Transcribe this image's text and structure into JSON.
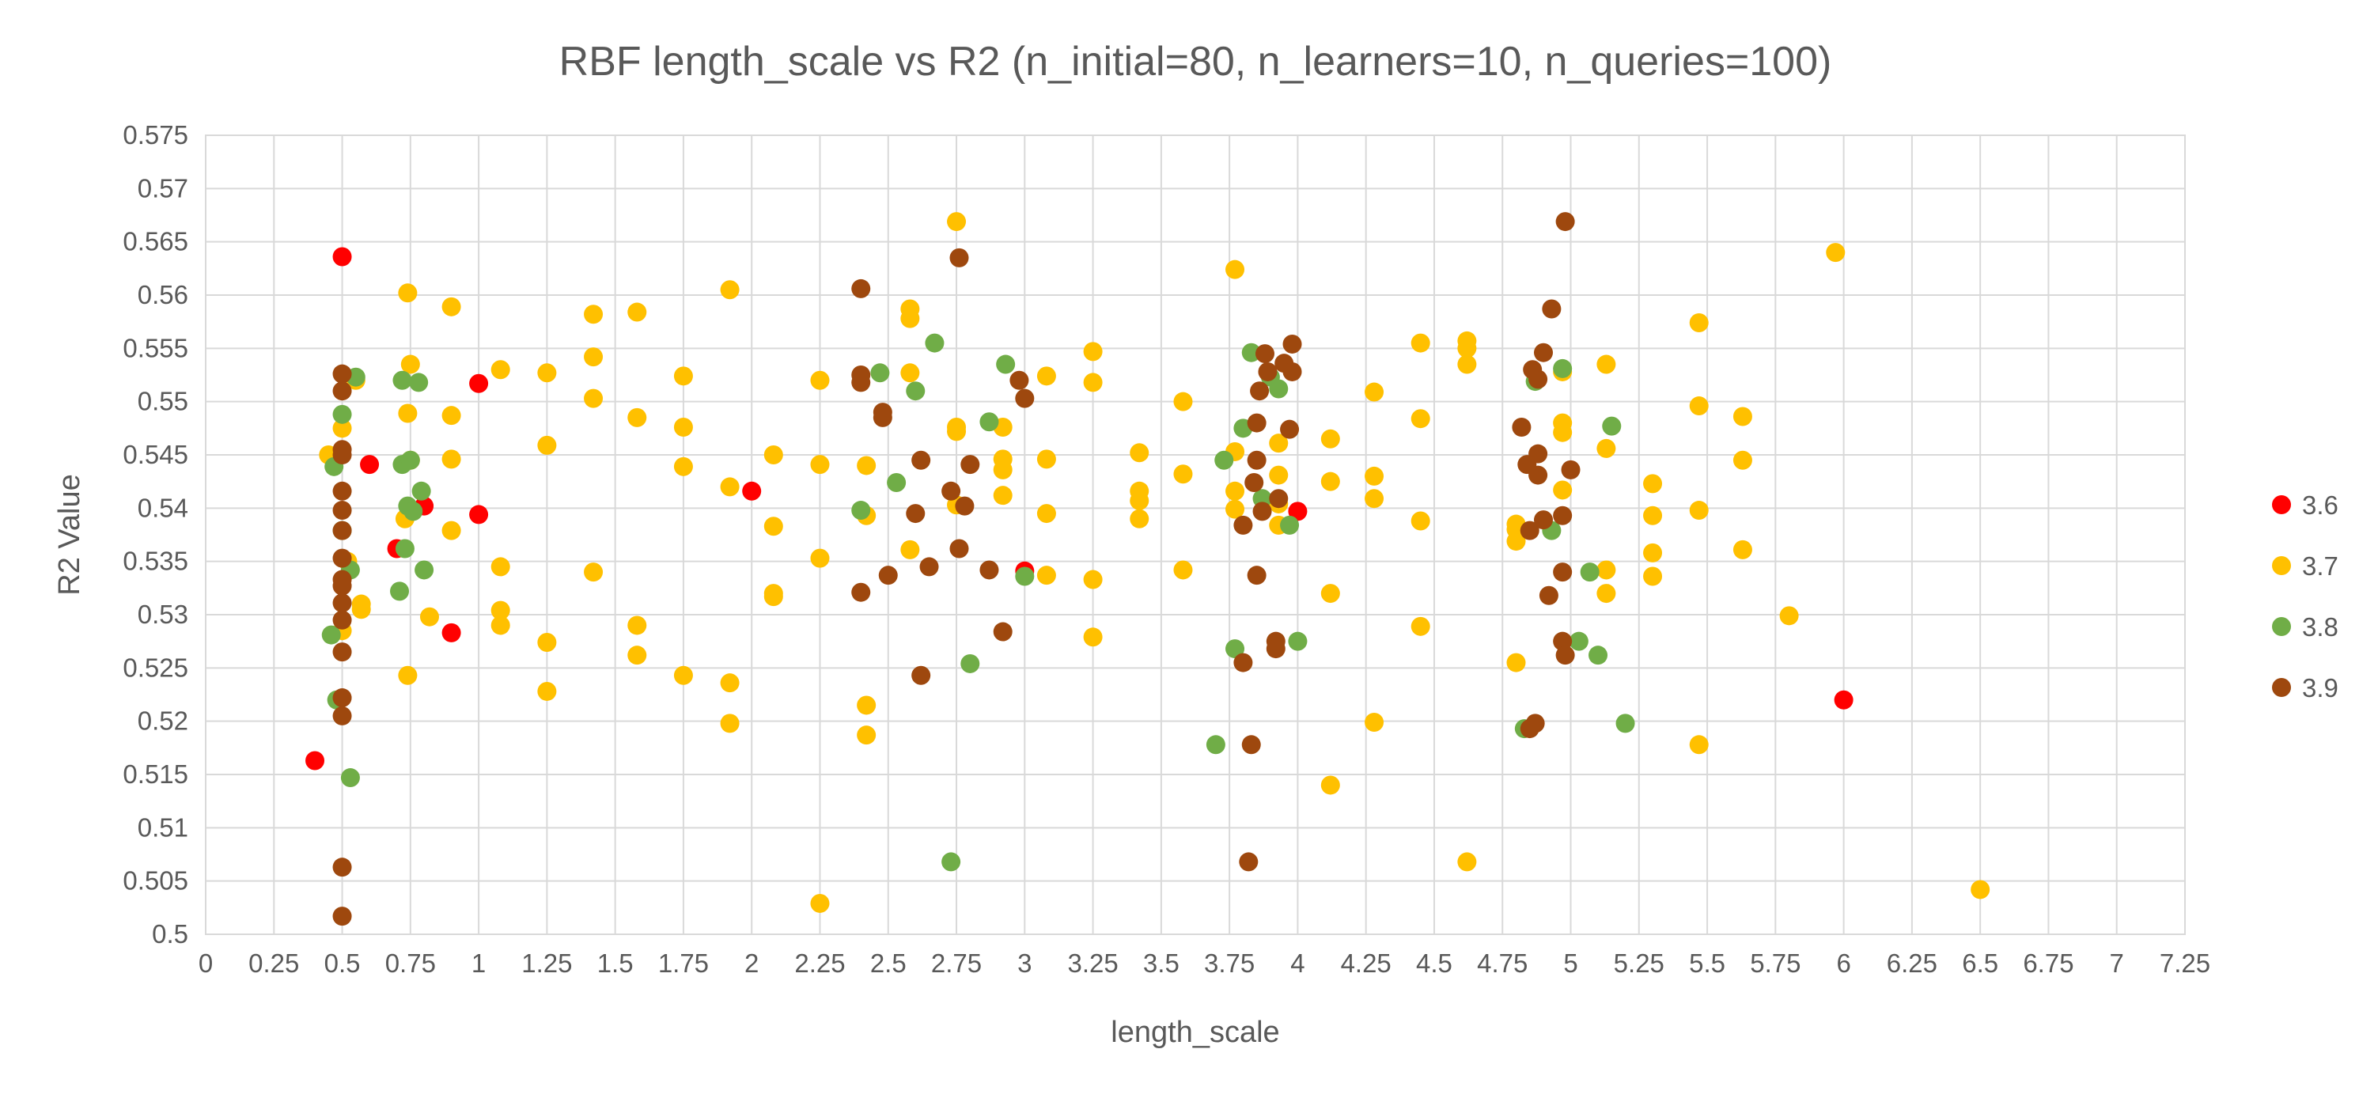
{
  "chart_data": {
    "type": "scatter",
    "title": "RBF length_scale vs R2 (n_initial=80, n_learners=10, n_queries=100)",
    "xlabel": "length_scale",
    "ylabel": "R2 Value",
    "xlim": [
      0,
      7.25
    ],
    "ylim": [
      0.5,
      0.575
    ],
    "xticks": [
      "0",
      "0.25",
      "0.5",
      "0.75",
      "1",
      "1.25",
      "1.5",
      "1.75",
      "2",
      "2.25",
      "2.5",
      "2.75",
      "3",
      "3.25",
      "3.5",
      "3.75",
      "4",
      "4.25",
      "4.5",
      "4.75",
      "5",
      "5.25",
      "5.5",
      "5.75",
      "6",
      "6.25",
      "6.5",
      "6.75",
      "7",
      "7.25"
    ],
    "yticks": [
      "0.5",
      "0.505",
      "0.51",
      "0.515",
      "0.52",
      "0.525",
      "0.53",
      "0.535",
      "0.54",
      "0.545",
      "0.55",
      "0.555",
      "0.56",
      "0.565",
      "0.57",
      "0.575"
    ],
    "grid": true,
    "legend_position": "right",
    "series": [
      {
        "name": "3.6",
        "color": "#ff0000",
        "points": [
          [
            0.5,
            0.5636
          ],
          [
            1.0,
            0.5517
          ],
          [
            0.6,
            0.5441
          ],
          [
            0.8,
            0.5402
          ],
          [
            0.7,
            0.5362
          ],
          [
            1.0,
            0.5394
          ],
          [
            0.9,
            0.5283
          ],
          [
            0.4,
            0.5163
          ],
          [
            2.0,
            0.5416
          ],
          [
            3.0,
            0.5341
          ],
          [
            4.0,
            0.5397
          ],
          [
            6.0,
            0.522
          ]
        ]
      },
      {
        "name": "3.7",
        "color": "#ffc000",
        "points": [
          [
            0.45,
            0.545
          ],
          [
            0.55,
            0.552
          ],
          [
            0.57,
            0.531
          ],
          [
            0.57,
            0.5305
          ],
          [
            0.5,
            0.5285
          ],
          [
            0.5,
            0.5475
          ],
          [
            0.52,
            0.535
          ],
          [
            0.74,
            0.5602
          ],
          [
            0.75,
            0.5535
          ],
          [
            0.74,
            0.5489
          ],
          [
            0.75,
            0.5445
          ],
          [
            0.73,
            0.539
          ],
          [
            0.74,
            0.5243
          ],
          [
            0.82,
            0.5298
          ],
          [
            0.9,
            0.5589
          ],
          [
            0.9,
            0.5487
          ],
          [
            0.9,
            0.5446
          ],
          [
            0.9,
            0.5379
          ],
          [
            1.08,
            0.553
          ],
          [
            1.08,
            0.5345
          ],
          [
            1.08,
            0.5304
          ],
          [
            1.08,
            0.529
          ],
          [
            1.25,
            0.5527
          ],
          [
            1.25,
            0.5459
          ],
          [
            1.25,
            0.5274
          ],
          [
            1.25,
            0.5228
          ],
          [
            1.42,
            0.5582
          ],
          [
            1.42,
            0.5542
          ],
          [
            1.42,
            0.5503
          ],
          [
            1.42,
            0.534
          ],
          [
            1.58,
            0.5584
          ],
          [
            1.58,
            0.5485
          ],
          [
            1.58,
            0.529
          ],
          [
            1.58,
            0.5262
          ],
          [
            1.75,
            0.5524
          ],
          [
            1.75,
            0.5476
          ],
          [
            1.75,
            0.5439
          ],
          [
            1.75,
            0.5243
          ],
          [
            1.92,
            0.5605
          ],
          [
            1.92,
            0.542
          ],
          [
            1.92,
            0.5236
          ],
          [
            1.92,
            0.5198
          ],
          [
            2.08,
            0.545
          ],
          [
            2.08,
            0.5383
          ],
          [
            2.08,
            0.532
          ],
          [
            2.08,
            0.5317
          ],
          [
            2.25,
            0.552
          ],
          [
            2.25,
            0.5441
          ],
          [
            2.25,
            0.5353
          ],
          [
            2.25,
            0.5029
          ],
          [
            2.42,
            0.544
          ],
          [
            2.42,
            0.5393
          ],
          [
            2.42,
            0.5215
          ],
          [
            2.42,
            0.5187
          ],
          [
            2.58,
            0.5587
          ],
          [
            2.58,
            0.5578
          ],
          [
            2.58,
            0.5527
          ],
          [
            2.58,
            0.5361
          ],
          [
            2.75,
            0.5669
          ],
          [
            2.75,
            0.5476
          ],
          [
            2.75,
            0.5472
          ],
          [
            2.75,
            0.5403
          ],
          [
            2.92,
            0.5476
          ],
          [
            2.92,
            0.5446
          ],
          [
            2.92,
            0.5436
          ],
          [
            2.92,
            0.5412
          ],
          [
            3.08,
            0.5524
          ],
          [
            3.08,
            0.5446
          ],
          [
            3.08,
            0.5395
          ],
          [
            3.08,
            0.5337
          ],
          [
            3.25,
            0.5547
          ],
          [
            3.25,
            0.5518
          ],
          [
            3.25,
            0.5333
          ],
          [
            3.25,
            0.5279
          ],
          [
            3.42,
            0.5452
          ],
          [
            3.42,
            0.5416
          ],
          [
            3.42,
            0.5407
          ],
          [
            3.42,
            0.539
          ],
          [
            3.58,
            0.55
          ],
          [
            3.58,
            0.5432
          ],
          [
            3.58,
            0.5342
          ],
          [
            3.77,
            0.5624
          ],
          [
            3.77,
            0.5453
          ],
          [
            3.77,
            0.5416
          ],
          [
            3.77,
            0.5399
          ],
          [
            3.93,
            0.5461
          ],
          [
            3.93,
            0.5431
          ],
          [
            3.93,
            0.5404
          ],
          [
            3.93,
            0.5384
          ],
          [
            4.12,
            0.5465
          ],
          [
            4.12,
            0.5425
          ],
          [
            4.12,
            0.532
          ],
          [
            4.12,
            0.514
          ],
          [
            4.28,
            0.5509
          ],
          [
            4.28,
            0.543
          ],
          [
            4.28,
            0.5409
          ],
          [
            4.28,
            0.5199
          ],
          [
            4.45,
            0.5555
          ],
          [
            4.45,
            0.5484
          ],
          [
            4.45,
            0.5388
          ],
          [
            4.45,
            0.5289
          ],
          [
            4.62,
            0.5557
          ],
          [
            4.62,
            0.555
          ],
          [
            4.62,
            0.5535
          ],
          [
            4.62,
            0.5068
          ],
          [
            4.8,
            0.5385
          ],
          [
            4.8,
            0.538
          ],
          [
            4.8,
            0.5369
          ],
          [
            4.8,
            0.5255
          ],
          [
            4.97,
            0.5528
          ],
          [
            4.97,
            0.548
          ],
          [
            4.97,
            0.5471
          ],
          [
            4.97,
            0.5417
          ],
          [
            5.13,
            0.5535
          ],
          [
            5.13,
            0.5456
          ],
          [
            5.13,
            0.5342
          ],
          [
            5.13,
            0.532
          ],
          [
            5.3,
            0.5423
          ],
          [
            5.3,
            0.5393
          ],
          [
            5.3,
            0.5358
          ],
          [
            5.3,
            0.5336
          ],
          [
            5.47,
            0.5574
          ],
          [
            5.47,
            0.5496
          ],
          [
            5.47,
            0.5398
          ],
          [
            5.47,
            0.5178
          ],
          [
            5.63,
            0.5486
          ],
          [
            5.63,
            0.5445
          ],
          [
            5.63,
            0.5361
          ],
          [
            5.8,
            0.5299
          ],
          [
            5.97,
            0.564
          ],
          [
            6.5,
            0.5042
          ]
        ]
      },
      {
        "name": "3.8",
        "color": "#70ad47",
        "points": [
          [
            0.47,
            0.5439
          ],
          [
            0.46,
            0.5281
          ],
          [
            0.48,
            0.522
          ],
          [
            0.5,
            0.5488
          ],
          [
            0.55,
            0.5523
          ],
          [
            0.53,
            0.5147
          ],
          [
            0.53,
            0.5342
          ],
          [
            0.5,
            0.5379
          ],
          [
            0.72,
            0.552
          ],
          [
            0.72,
            0.5441
          ],
          [
            0.73,
            0.5362
          ],
          [
            0.71,
            0.5322
          ],
          [
            0.74,
            0.5402
          ],
          [
            0.75,
            0.5445
          ],
          [
            0.76,
            0.5397
          ],
          [
            0.78,
            0.5518
          ],
          [
            0.79,
            0.5416
          ],
          [
            0.8,
            0.5342
          ],
          [
            2.4,
            0.5398
          ],
          [
            2.47,
            0.5527
          ],
          [
            2.53,
            0.5424
          ],
          [
            2.6,
            0.551
          ],
          [
            2.67,
            0.5555
          ],
          [
            2.73,
            0.5068
          ],
          [
            2.8,
            0.5254
          ],
          [
            2.87,
            0.5481
          ],
          [
            2.93,
            0.5535
          ],
          [
            3.0,
            0.5336
          ],
          [
            3.7,
            0.5178
          ],
          [
            3.73,
            0.5445
          ],
          [
            3.77,
            0.5268
          ],
          [
            3.8,
            0.5475
          ],
          [
            3.83,
            0.5546
          ],
          [
            3.87,
            0.5409
          ],
          [
            3.9,
            0.5523
          ],
          [
            3.93,
            0.5512
          ],
          [
            3.97,
            0.5384
          ],
          [
            4.0,
            0.5275
          ],
          [
            4.83,
            0.5193
          ],
          [
            4.87,
            0.5519
          ],
          [
            4.93,
            0.5379
          ],
          [
            4.97,
            0.5531
          ],
          [
            5.03,
            0.5275
          ],
          [
            5.07,
            0.534
          ],
          [
            5.1,
            0.5262
          ],
          [
            5.15,
            0.5477
          ],
          [
            5.2,
            0.5198
          ]
        ]
      },
      {
        "name": "3.9",
        "color": "#9e480e",
        "points": [
          [
            0.5,
            0.5526
          ],
          [
            0.5,
            0.551
          ],
          [
            0.5,
            0.5455
          ],
          [
            0.5,
            0.545
          ],
          [
            0.5,
            0.5416
          ],
          [
            0.5,
            0.5398
          ],
          [
            0.5,
            0.5379
          ],
          [
            0.5,
            0.5353
          ],
          [
            0.5,
            0.5333
          ],
          [
            0.5,
            0.5327
          ],
          [
            0.5,
            0.5311
          ],
          [
            0.5,
            0.5295
          ],
          [
            0.5,
            0.5265
          ],
          [
            0.5,
            0.5222
          ],
          [
            0.5,
            0.5205
          ],
          [
            0.5,
            0.5063
          ],
          [
            0.5,
            0.5017
          ],
          [
            2.4,
            0.5606
          ],
          [
            2.4,
            0.5525
          ],
          [
            2.4,
            0.5518
          ],
          [
            2.4,
            0.5321
          ],
          [
            2.48,
            0.549
          ],
          [
            2.48,
            0.5485
          ],
          [
            2.5,
            0.5337
          ],
          [
            2.6,
            0.5395
          ],
          [
            2.62,
            0.5445
          ],
          [
            2.62,
            0.5243
          ],
          [
            2.65,
            0.5345
          ],
          [
            2.73,
            0.5416
          ],
          [
            2.76,
            0.5635
          ],
          [
            2.76,
            0.5362
          ],
          [
            2.78,
            0.5402
          ],
          [
            2.8,
            0.5441
          ],
          [
            2.87,
            0.5342
          ],
          [
            2.92,
            0.5284
          ],
          [
            2.98,
            0.552
          ],
          [
            3.0,
            0.5503
          ],
          [
            3.8,
            0.5384
          ],
          [
            3.8,
            0.5255
          ],
          [
            3.82,
            0.5068
          ],
          [
            3.83,
            0.5178
          ],
          [
            3.84,
            0.5424
          ],
          [
            3.85,
            0.5445
          ],
          [
            3.85,
            0.548
          ],
          [
            3.85,
            0.5337
          ],
          [
            3.86,
            0.551
          ],
          [
            3.87,
            0.5397
          ],
          [
            3.88,
            0.5545
          ],
          [
            3.89,
            0.5528
          ],
          [
            3.92,
            0.5275
          ],
          [
            3.92,
            0.5268
          ],
          [
            3.93,
            0.5409
          ],
          [
            3.95,
            0.5536
          ],
          [
            3.97,
            0.5474
          ],
          [
            3.98,
            0.5554
          ],
          [
            3.98,
            0.5528
          ],
          [
            4.82,
            0.5476
          ],
          [
            4.84,
            0.5441
          ],
          [
            4.85,
            0.5379
          ],
          [
            4.85,
            0.5193
          ],
          [
            4.86,
            0.553
          ],
          [
            4.87,
            0.5198
          ],
          [
            4.88,
            0.5521
          ],
          [
            4.88,
            0.5451
          ],
          [
            4.88,
            0.5431
          ],
          [
            4.9,
            0.5389
          ],
          [
            4.9,
            0.5546
          ],
          [
            4.92,
            0.5318
          ],
          [
            4.93,
            0.5587
          ],
          [
            4.97,
            0.5393
          ],
          [
            4.97,
            0.534
          ],
          [
            4.97,
            0.5275
          ],
          [
            4.98,
            0.5262
          ],
          [
            4.98,
            0.5669
          ],
          [
            5.0,
            0.5436
          ]
        ]
      }
    ]
  }
}
